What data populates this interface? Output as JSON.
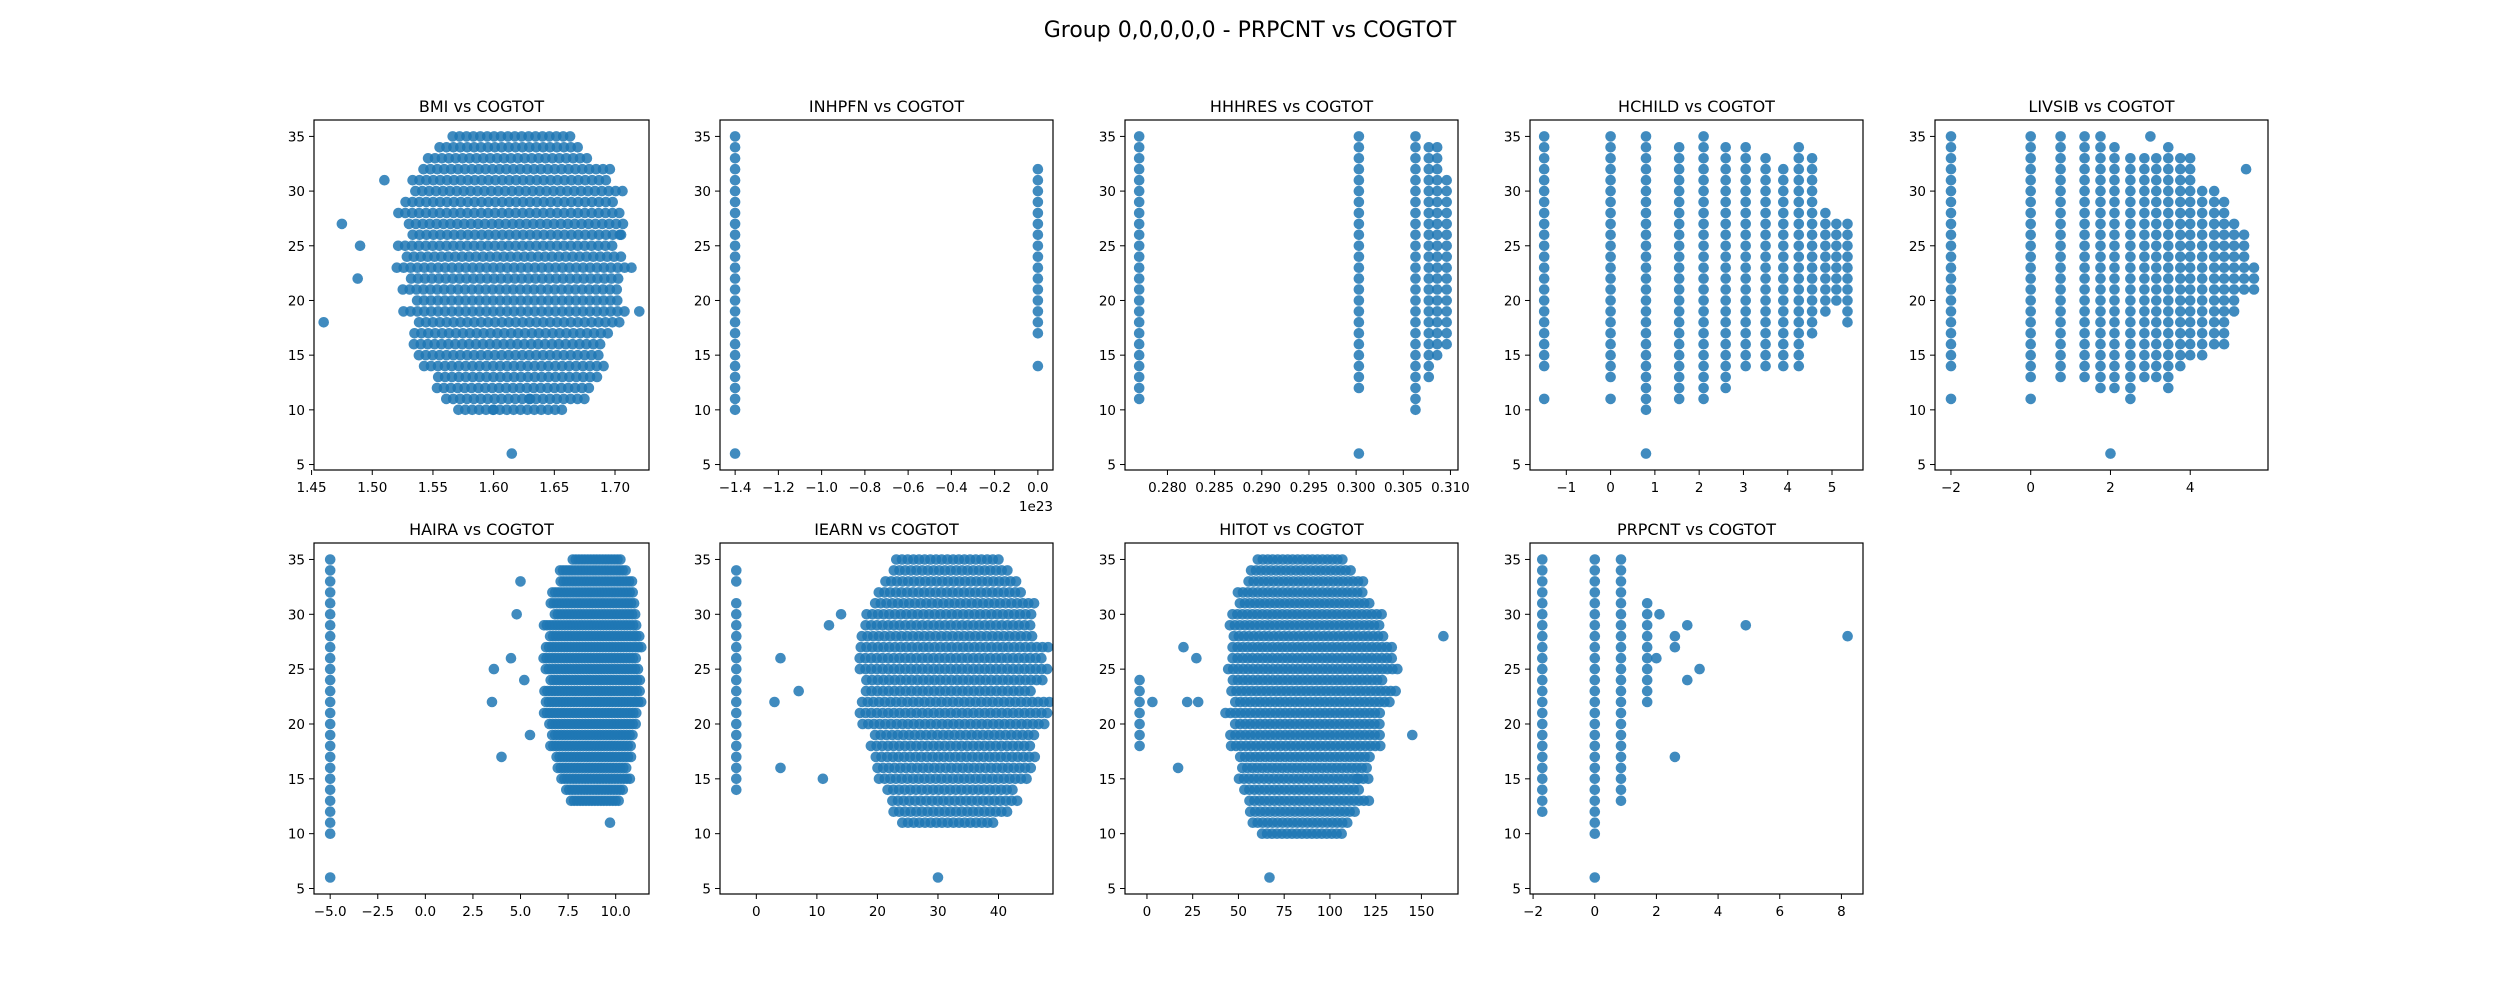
{
  "figure": {
    "suptitle": "Group 0,0,0,0,0 - PRPCNT vs COGTOT"
  },
  "colors": {
    "marker": "#1f77b4",
    "axes": "#000000",
    "background": "#ffffff"
  },
  "chart_data": [
    {
      "type": "scatter",
      "title": "BMI vs COGTOT",
      "xlabel": "",
      "ylabel": "",
      "xlim": [
        1.452,
        1.728
      ],
      "ylim": [
        4.5,
        36.5
      ],
      "xticks": [
        1.45,
        1.5,
        1.55,
        1.6,
        1.65,
        1.7
      ],
      "xtick_labels": [
        "1.45",
        "1.50",
        "1.55",
        "1.60",
        "1.65",
        "1.70"
      ],
      "yticks": [
        5,
        10,
        15,
        20,
        25,
        30,
        35
      ],
      "cloud": {
        "x": [
          1.527,
          1.709
        ],
        "y": [
          10,
          35
        ],
        "cx": 1.615,
        "cy": 25
      },
      "columns": [],
      "x_offset_label": "",
      "points": [
        [
          1.46,
          18
        ],
        [
          1.475,
          27
        ],
        [
          1.488,
          22
        ],
        [
          1.49,
          25
        ],
        [
          1.51,
          31
        ],
        [
          1.72,
          19
        ],
        [
          1.705,
          26
        ],
        [
          1.615,
          6
        ],
        [
          1.6,
          10
        ],
        [
          1.63,
          11
        ]
      ]
    },
    {
      "type": "scatter",
      "title": "INHPFN vs COGTOT",
      "xlabel": "",
      "ylabel": "",
      "xlim": [
        -1.47,
        0.07
      ],
      "ylim": [
        4.5,
        36.5
      ],
      "xticks": [
        -1.4,
        -1.2,
        -1.0,
        -0.8,
        -0.6,
        -0.4,
        -0.2,
        0.0
      ],
      "xtick_labels": [
        "−1.4",
        "−1.2",
        "−1.0",
        "−0.8",
        "−0.6",
        "−0.4",
        "−0.2",
        "0.0"
      ],
      "yticks": [
        5,
        10,
        15,
        20,
        25,
        30,
        35
      ],
      "cloud": null,
      "columns": [
        {
          "x": -1.4,
          "y": [
            10,
            35
          ]
        },
        {
          "x": 0.0,
          "y": [
            17,
            32
          ]
        }
      ],
      "x_offset_label": "1e23",
      "points": [
        [
          -1.4,
          6
        ],
        [
          0.0,
          14
        ]
      ]
    },
    {
      "type": "scatter",
      "title": "HHHRES vs COGTOT",
      "xlabel": "",
      "ylabel": "",
      "xlim": [
        0.2755,
        0.3108
      ],
      "ylim": [
        4.5,
        36.5
      ],
      "xticks": [
        0.28,
        0.285,
        0.29,
        0.295,
        0.3,
        0.305,
        0.31
      ],
      "xtick_labels": [
        "0.280",
        "0.285",
        "0.290",
        "0.295",
        "0.300",
        "0.305",
        "0.310"
      ],
      "yticks": [
        5,
        10,
        15,
        20,
        25,
        30,
        35
      ],
      "cloud": null,
      "columns": [
        {
          "x": 0.277,
          "y": [
            11,
            35
          ]
        },
        {
          "x": 0.3003,
          "y": [
            12,
            35
          ]
        },
        {
          "x": 0.3063,
          "y": [
            11,
            35
          ]
        },
        {
          "x": 0.3077,
          "y": [
            13,
            34
          ]
        },
        {
          "x": 0.3086,
          "y": [
            15,
            34
          ]
        },
        {
          "x": 0.3096,
          "y": [
            16,
            31
          ]
        }
      ],
      "x_offset_label": "",
      "points": [
        [
          0.3003,
          6
        ],
        [
          0.3063,
          10
        ]
      ]
    },
    {
      "type": "scatter",
      "title": "HCHILD vs COGTOT",
      "xlabel": "",
      "ylabel": "",
      "xlim": [
        -1.82,
        5.7
      ],
      "ylim": [
        4.5,
        36.5
      ],
      "xticks": [
        -1,
        0,
        1,
        2,
        3,
        4,
        5
      ],
      "xtick_labels": [
        "−1",
        "0",
        "1",
        "2",
        "3",
        "4",
        "5"
      ],
      "yticks": [
        5,
        10,
        15,
        20,
        25,
        30,
        35
      ],
      "cloud": null,
      "columns": [
        {
          "x": -1.5,
          "y": [
            14,
            35
          ]
        },
        {
          "x": 0.0,
          "y": [
            13,
            35
          ]
        },
        {
          "x": 0.8,
          "y": [
            10,
            35
          ]
        },
        {
          "x": 1.55,
          "y": [
            11,
            34
          ]
        },
        {
          "x": 2.1,
          "y": [
            11,
            35
          ]
        },
        {
          "x": 2.6,
          "y": [
            12,
            34
          ]
        },
        {
          "x": 3.05,
          "y": [
            14,
            34
          ]
        },
        {
          "x": 3.5,
          "y": [
            14,
            33
          ]
        },
        {
          "x": 3.9,
          "y": [
            14,
            32
          ]
        },
        {
          "x": 4.25,
          "y": [
            14,
            34
          ]
        },
        {
          "x": 4.55,
          "y": [
            17,
            33
          ]
        },
        {
          "x": 4.85,
          "y": [
            19,
            28
          ]
        },
        {
          "x": 5.1,
          "y": [
            20,
            27
          ]
        },
        {
          "x": 5.35,
          "y": [
            18,
            27
          ]
        }
      ],
      "x_offset_label": "",
      "points": [
        [
          -1.5,
          11
        ],
        [
          0.0,
          11
        ],
        [
          0.8,
          6
        ]
      ]
    },
    {
      "type": "scatter",
      "title": "LIVSIB vs COGTOT",
      "xlabel": "",
      "ylabel": "",
      "xlim": [
        -2.4,
        5.95
      ],
      "ylim": [
        4.5,
        36.5
      ],
      "xticks": [
        -2,
        0,
        2,
        4
      ],
      "xtick_labels": [
        "−2",
        "0",
        "2",
        "4"
      ],
      "yticks": [
        5,
        10,
        15,
        20,
        25,
        30,
        35
      ],
      "cloud": null,
      "columns": [
        {
          "x": -2.0,
          "y": [
            14,
            35
          ]
        },
        {
          "x": 0.0,
          "y": [
            13,
            35
          ]
        },
        {
          "x": 0.75,
          "y": [
            13,
            35
          ]
        },
        {
          "x": 1.35,
          "y": [
            13,
            35
          ]
        },
        {
          "x": 1.75,
          "y": [
            12,
            35
          ]
        },
        {
          "x": 2.1,
          "y": [
            12,
            34
          ]
        },
        {
          "x": 2.5,
          "y": [
            11,
            33
          ]
        },
        {
          "x": 2.85,
          "y": [
            13,
            33
          ]
        },
        {
          "x": 3.15,
          "y": [
            13,
            33
          ]
        },
        {
          "x": 3.45,
          "y": [
            12,
            34
          ]
        },
        {
          "x": 3.75,
          "y": [
            14,
            33
          ]
        },
        {
          "x": 4.0,
          "y": [
            15,
            33
          ]
        },
        {
          "x": 4.3,
          "y": [
            15,
            30
          ]
        },
        {
          "x": 4.6,
          "y": [
            16,
            30
          ]
        },
        {
          "x": 4.85,
          "y": [
            16,
            29
          ]
        },
        {
          "x": 5.1,
          "y": [
            19,
            27
          ]
        },
        {
          "x": 5.35,
          "y": [
            21,
            26
          ]
        },
        {
          "x": 5.6,
          "y": [
            21,
            23
          ]
        }
      ],
      "x_offset_label": "",
      "points": [
        [
          -2.0,
          11
        ],
        [
          0.0,
          11
        ],
        [
          2.0,
          6
        ],
        [
          3.0,
          35
        ],
        [
          5.4,
          32
        ]
      ]
    },
    {
      "type": "scatter",
      "title": "HAIRA vs COGTOT",
      "xlabel": "",
      "ylabel": "",
      "xlim": [
        -5.85,
        11.75
      ],
      "ylim": [
        4.5,
        36.5
      ],
      "xticks": [
        -5.0,
        -2.5,
        0.0,
        2.5,
        5.0,
        7.5,
        10.0
      ],
      "xtick_labels": [
        "−5.0",
        "−2.5",
        "0.0",
        "2.5",
        "5.0",
        "7.5",
        "10.0"
      ],
      "yticks": [
        5,
        10,
        15,
        20,
        25,
        30,
        35
      ],
      "cloud": {
        "x": [
          6.3,
          11.3
        ],
        "y": [
          13,
          35
        ],
        "cx": 9.2,
        "cy": 25
      },
      "columns": [
        {
          "x": -5.0,
          "y": [
            10,
            35
          ]
        }
      ],
      "x_offset_label": "",
      "points": [
        [
          -5.0,
          6
        ],
        [
          3.5,
          22
        ],
        [
          3.6,
          25
        ],
        [
          4.0,
          17
        ],
        [
          4.5,
          26
        ],
        [
          4.8,
          30
        ],
        [
          5.0,
          33
        ],
        [
          5.2,
          24
        ],
        [
          5.5,
          19
        ],
        [
          9.7,
          11
        ]
      ]
    },
    {
      "type": "scatter",
      "title": "IEARN vs COGTOT",
      "xlabel": "",
      "ylabel": "",
      "xlim": [
        -6.0,
        49.0
      ],
      "ylim": [
        4.5,
        36.5
      ],
      "xticks": [
        0,
        10,
        20,
        30,
        40
      ],
      "xtick_labels": [
        "0",
        "10",
        "20",
        "30",
        "40"
      ],
      "yticks": [
        5,
        10,
        15,
        20,
        25,
        30,
        35
      ],
      "cloud": {
        "x": [
          17.5,
          47.5
        ],
        "y": [
          11,
          35
        ],
        "cx": 31,
        "cy": 25
      },
      "columns": [
        {
          "x": -3.3,
          "y": [
            14,
            31
          ]
        }
      ],
      "x_offset_label": "",
      "points": [
        [
          -3.3,
          33
        ],
        [
          -3.3,
          34
        ],
        [
          3.0,
          22
        ],
        [
          4.0,
          16
        ],
        [
          4.0,
          26
        ],
        [
          7.0,
          23
        ],
        [
          11.0,
          15
        ],
        [
          12.0,
          29
        ],
        [
          14.0,
          30
        ],
        [
          30.0,
          6
        ]
      ]
    },
    {
      "type": "scatter",
      "title": "HITOT vs COGTOT",
      "xlabel": "",
      "ylabel": "",
      "xlim": [
        -12.0,
        170.0
      ],
      "ylim": [
        4.5,
        36.5
      ],
      "xticks": [
        0,
        25,
        50,
        75,
        100,
        125,
        150
      ],
      "xtick_labels": [
        "0",
        "25",
        "50",
        "75",
        "100",
        "125",
        "150"
      ],
      "yticks": [
        5,
        10,
        15,
        20,
        25,
        30,
        35
      ],
      "cloud": {
        "x": [
          45,
          132
        ],
        "y": [
          10,
          35
        ],
        "cx": 80,
        "cy": 25
      },
      "columns": [
        {
          "x": -4.0,
          "y": [
            18,
            24
          ]
        }
      ],
      "x_offset_label": "",
      "points": [
        [
          3,
          22
        ],
        [
          17,
          16
        ],
        [
          20,
          27
        ],
        [
          22,
          22
        ],
        [
          27,
          26
        ],
        [
          28,
          22
        ],
        [
          67,
          6
        ],
        [
          115,
          15
        ],
        [
          145,
          19
        ],
        [
          162,
          28
        ]
      ]
    },
    {
      "type": "scatter",
      "title": "PRPCNT vs COGTOT",
      "xlabel": "",
      "ylabel": "",
      "xlim": [
        -2.1,
        8.7
      ],
      "ylim": [
        4.5,
        36.5
      ],
      "xticks": [
        -2,
        0,
        2,
        4,
        6,
        8
      ],
      "xtick_labels": [
        "−2",
        "0",
        "2",
        "4",
        "6",
        "8"
      ],
      "yticks": [
        5,
        10,
        15,
        20,
        25,
        30,
        35
      ],
      "cloud": null,
      "columns": [
        {
          "x": -1.7,
          "y": [
            12,
            35
          ]
        },
        {
          "x": 0.0,
          "y": [
            10,
            35
          ]
        },
        {
          "x": 0.85,
          "y": [
            13,
            35
          ]
        },
        {
          "x": 1.7,
          "y": [
            22,
            31
          ]
        }
      ],
      "x_offset_label": "",
      "points": [
        [
          0.0,
          6
        ],
        [
          2.0,
          26
        ],
        [
          2.1,
          30
        ],
        [
          2.6,
          28
        ],
        [
          2.6,
          27
        ],
        [
          2.6,
          17
        ],
        [
          3.0,
          29
        ],
        [
          3.0,
          24
        ],
        [
          3.4,
          25
        ],
        [
          4.9,
          29
        ],
        [
          8.2,
          28
        ]
      ]
    }
  ]
}
